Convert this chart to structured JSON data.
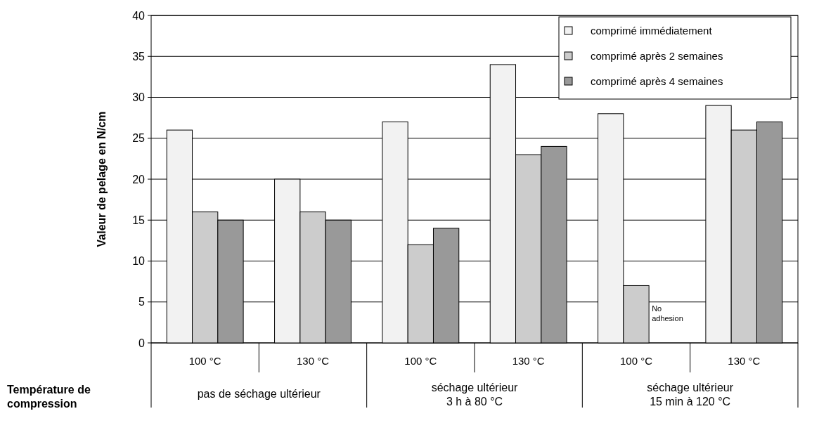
{
  "chart_data": {
    "type": "bar",
    "categories": [
      "100 °C",
      "130 °C",
      "100 °C",
      "130 °C",
      "100 °C",
      "130 °C"
    ],
    "series": [
      {
        "name": "comprimé immédiatement",
        "color": "#f2f2f2",
        "values": [
          26,
          20,
          27,
          34,
          28,
          29
        ]
      },
      {
        "name": "comprimé après 2 semaines",
        "color": "#cccccc",
        "values": [
          16,
          16,
          12,
          23,
          7,
          26
        ]
      },
      {
        "name": "comprimé après 4 semaines",
        "color": "#999999",
        "values": [
          15,
          15,
          14,
          24,
          null,
          27
        ]
      }
    ],
    "ylabel": "Valeur de pelage en N/cm",
    "xlabel": "Température de\ncompression",
    "annotations": [
      "pas de séchage ultérieur",
      "séchage ultérieur\n3 h à 80 °C",
      "séchage ultérieur\n15 min à 120 °C",
      "No\nadhesion"
    ],
    "ylim": [
      0,
      40
    ],
    "yticks": [
      0,
      5,
      10,
      15,
      20,
      25,
      30,
      35,
      40
    ],
    "grid": "y",
    "legend": "top right"
  }
}
